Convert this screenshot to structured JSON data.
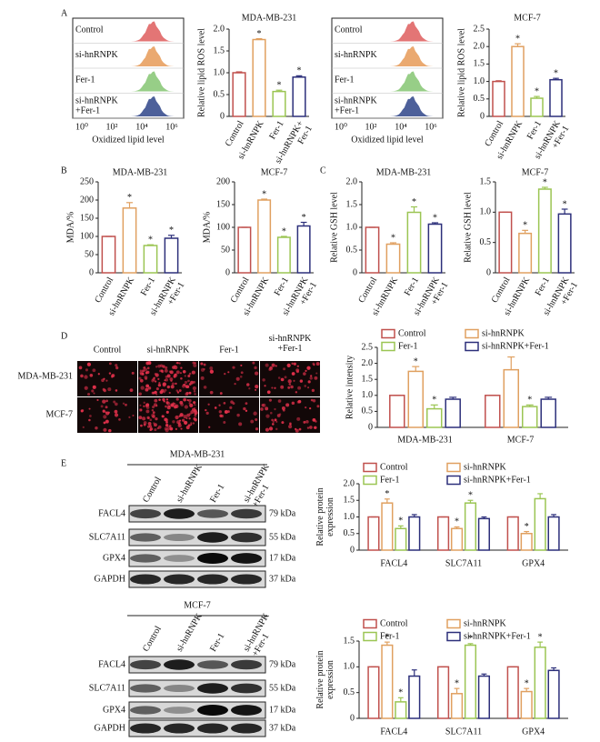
{
  "panel_labels": [
    "A",
    "B",
    "C",
    "D",
    "E"
  ],
  "flow_panels": [
    {
      "samples": [
        "Control",
        "si-hnRNPK",
        "Fer-1",
        "si-hnRNPK\n+Fer-1"
      ],
      "x_ticks": [
        "10⁰",
        "10²",
        "10⁴",
        "10⁶"
      ],
      "x_label": "Oxidized lipid level"
    },
    {
      "samples": [
        "Control",
        "si-hnRNPK",
        "Fer-1",
        "si-hnRNPK\n+Fer-1"
      ],
      "x_ticks": [
        "10⁰",
        "10²",
        "10⁴",
        "10⁶"
      ],
      "x_label": "Oxidized lipid level"
    }
  ],
  "imaging": {
    "columns": [
      "Control",
      "si-hnRNPK",
      "Fer-1",
      "si-hnRNPK\n+Fer-1"
    ],
    "rows": [
      "MDA-MB-231",
      "MCF-7"
    ]
  },
  "blots": [
    {
      "cell_line": "MDA-MB-231",
      "lanes": [
        "Control",
        "si-hnRNPK",
        "Fer-1",
        "si-hnRNPK\n+Fer-1"
      ],
      "proteins": [
        "FACL4",
        "SLC7A11",
        "GPX4",
        "GAPDH"
      ],
      "sizes": [
        "79 kDa",
        "55 kDa",
        "17 kDa",
        "37 kDa"
      ]
    },
    {
      "cell_line": "MCF-7",
      "lanes": [
        "Control",
        "si-hnRNPK",
        "Fer-1",
        "si-hnRNPK\n+Fer-1"
      ],
      "proteins": [
        "FACL4",
        "SLC7A11",
        "GPX4",
        "GAPDH"
      ],
      "sizes": [
        "79 kDa",
        "55 kDa",
        "17 kDa",
        "37 kDa"
      ]
    }
  ],
  "chart_data": [
    {
      "type": "bar",
      "title": "MDA-MB-231",
      "y_label": "Relative lipid ROS level",
      "categories": [
        "Control",
        "si-hnRNPK",
        "Fer-1",
        "si-hnRNPK+\nFer-1"
      ],
      "values": [
        1.0,
        1.76,
        0.57,
        0.9
      ],
      "errors": [
        0.02,
        0.02,
        0.03,
        0.03
      ],
      "significance": [
        null,
        "*",
        "*",
        "*"
      ],
      "colors": [
        "#c0504d",
        "#e0a060",
        "#9bc553",
        "#2c2f7a"
      ],
      "ylim": [
        0,
        2
      ],
      "yticks": [
        0,
        0.5,
        {
          "value": 1,
          "label": "1.0"
        },
        1.5,
        {
          "value": 2,
          "label": "2.0"
        }
      ]
    },
    {
      "type": "bar",
      "title": "MCF-7",
      "y_label": "Relative lipid ROS level",
      "categories": [
        "Control",
        "si-hnRNPK",
        "Fer-1",
        "si-hnRNPK\n+Fer-1"
      ],
      "values": [
        1.0,
        2.0,
        0.52,
        1.05
      ],
      "errors": [
        0.02,
        0.08,
        0.05,
        0.04
      ],
      "significance": [
        null,
        "*",
        "*",
        "*"
      ],
      "colors": [
        "#c0504d",
        "#e0a060",
        "#9bc553",
        "#2c2f7a"
      ],
      "ylim": [
        0,
        2.5
      ],
      "yticks": [
        0,
        0.5,
        {
          "value": 1,
          "label": "1.0"
        },
        1.5,
        {
          "value": 2,
          "label": "2.0"
        },
        2.5
      ]
    },
    {
      "type": "bar",
      "title": "MDA-MB-231",
      "y_label": "MDA/%",
      "categories": [
        "Control",
        "si-hnRNPK",
        "Fer-1",
        "si-hnRNPK\n+Fer-1"
      ],
      "values": [
        100,
        178,
        75,
        95
      ],
      "errors": [
        0,
        15,
        2,
        8
      ],
      "significance": [
        null,
        "*",
        "*",
        "*"
      ],
      "colors": [
        "#c0504d",
        "#e0a060",
        "#9bc553",
        "#2c2f7a"
      ],
      "ylim": [
        0,
        250
      ],
      "yticks": [
        0,
        50,
        100,
        150,
        200,
        250
      ]
    },
    {
      "type": "bar",
      "title": "MCF-7",
      "y_label": "MDA/%",
      "categories": [
        "Control",
        "si-hnRNPK",
        "Fer-1",
        "si-hnRNPK\n+Fer-1"
      ],
      "values": [
        100,
        160,
        78,
        103
      ],
      "errors": [
        0,
        2,
        2,
        8
      ],
      "significance": [
        null,
        "*",
        "*",
        "*"
      ],
      "colors": [
        "#c0504d",
        "#e0a060",
        "#9bc553",
        "#2c2f7a"
      ],
      "ylim": [
        0,
        200
      ],
      "yticks": [
        0,
        50,
        100,
        150,
        200
      ]
    },
    {
      "type": "bar",
      "title": "MDA-MB-231",
      "y_label": "Relative GSH level",
      "categories": [
        "Control",
        "si-hnRNPK",
        "Fer-1",
        "si-hnRNPK\n+Fer-1"
      ],
      "values": [
        1.0,
        0.63,
        1.33,
        1.07
      ],
      "errors": [
        0,
        0.03,
        0.12,
        0.03
      ],
      "significance": [
        null,
        "*",
        "*",
        "*"
      ],
      "colors": [
        "#c0504d",
        "#e0a060",
        "#9bc553",
        "#2c2f7a"
      ],
      "ylim": [
        0,
        2
      ],
      "yticks": [
        0,
        0.5,
        {
          "value": 1,
          "label": "1.0"
        },
        1.5,
        {
          "value": 2,
          "label": "2.0"
        }
      ]
    },
    {
      "type": "bar",
      "title": "MCF-7",
      "y_label": "Relative GSH level",
      "categories": [
        "Control",
        "si-hnRNPK",
        "Fer-1",
        "si-hnRNPK\n+Fer-1"
      ],
      "values": [
        1.0,
        0.65,
        1.38,
        0.97
      ],
      "errors": [
        0,
        0.05,
        0.03,
        0.08
      ],
      "significance": [
        null,
        "*",
        "*",
        "*"
      ],
      "colors": [
        "#c0504d",
        "#e0a060",
        "#9bc553",
        "#2c2f7a"
      ],
      "ylim": [
        0,
        1.5
      ],
      "yticks": [
        0,
        0.5,
        {
          "value": 1,
          "label": "1.0"
        },
        1.5
      ]
    },
    {
      "type": "grouped_bar",
      "y_label": "Relative intensity",
      "legend": "top",
      "categories": [
        "MDA-MB-231",
        "MCF-7"
      ],
      "series": [
        {
          "name": "Control",
          "color": "#c0504d",
          "values": [
            1.0,
            1.0
          ],
          "errors": [
            0,
            0
          ],
          "significance": [
            null,
            null
          ]
        },
        {
          "name": "si-hnRNPK",
          "color": "#e0a060",
          "values": [
            1.75,
            1.8
          ],
          "errors": [
            0.15,
            0.4
          ],
          "significance": [
            "*",
            null
          ]
        },
        {
          "name": "Fer-1",
          "color": "#9bc553",
          "values": [
            0.58,
            0.65
          ],
          "errors": [
            0.12,
            0.05
          ],
          "significance": [
            "*",
            "*"
          ]
        },
        {
          "name": "si-hnRNPK+Fer-1",
          "color": "#2c2f7a",
          "values": [
            0.88,
            0.88
          ],
          "errors": [
            0.06,
            0.06
          ],
          "significance": [
            null,
            null
          ]
        }
      ],
      "ylim": [
        0,
        2.5
      ],
      "yticks": [
        0,
        0.5,
        {
          "value": 1,
          "label": "1.0"
        },
        1.5,
        {
          "value": 2,
          "label": "2.0"
        },
        2.5
      ]
    },
    {
      "type": "grouped_bar",
      "y_label": "Relative protein\nexpression",
      "legend": "top",
      "categories": [
        "FACL4",
        "SLC7A11",
        "GPX4"
      ],
      "series": [
        {
          "name": "Control",
          "color": "#c0504d",
          "values": [
            1.0,
            1.0,
            1.0
          ],
          "errors": [
            0,
            0,
            0
          ],
          "significance": [
            null,
            null,
            null
          ]
        },
        {
          "name": "si-hnRNPK",
          "color": "#e0a060",
          "values": [
            1.42,
            0.65,
            0.5
          ],
          "errors": [
            0.12,
            0.05,
            0.06
          ],
          "significance": [
            "*",
            "*",
            "*"
          ]
        },
        {
          "name": "Fer-1",
          "color": "#9bc553",
          "values": [
            0.65,
            1.42,
            1.55
          ],
          "errors": [
            0.08,
            0.08,
            0.15
          ],
          "significance": [
            "*",
            "*",
            null
          ]
        },
        {
          "name": "si-hnRNPK+Fer-1",
          "color": "#2c2f7a",
          "values": [
            1.0,
            0.95,
            1.0
          ],
          "errors": [
            0.07,
            0.05,
            0.07
          ],
          "significance": [
            null,
            null,
            null
          ]
        }
      ],
      "ylim": [
        0,
        2
      ],
      "yticks": [
        0,
        0.5,
        {
          "value": 1,
          "label": "1.0"
        },
        1.5,
        {
          "value": 2,
          "label": "2.0"
        }
      ]
    },
    {
      "type": "grouped_bar",
      "y_label": "Relative protein\nexpression",
      "legend": "top",
      "categories": [
        "FACL4",
        "SLC7A11",
        "GPX4"
      ],
      "series": [
        {
          "name": "Control",
          "color": "#c0504d",
          "values": [
            1.0,
            1.0,
            1.0
          ],
          "errors": [
            0,
            0,
            0
          ],
          "significance": [
            null,
            null,
            null
          ]
        },
        {
          "name": "si-hnRNPK",
          "color": "#e0a060",
          "values": [
            1.42,
            0.48,
            0.52
          ],
          "errors": [
            0.06,
            0.1,
            0.06
          ],
          "significance": [
            "*",
            "*",
            "*"
          ]
        },
        {
          "name": "Fer-1",
          "color": "#9bc553",
          "values": [
            0.32,
            1.42,
            1.38
          ],
          "errors": [
            0.08,
            0.03,
            0.1
          ],
          "significance": [
            "*",
            "*",
            "*"
          ]
        },
        {
          "name": "si-hnRNPK+Fer-1",
          "color": "#2c2f7a",
          "values": [
            0.82,
            0.82,
            0.93
          ],
          "errors": [
            0.12,
            0.04,
            0.05
          ],
          "significance": [
            null,
            null,
            null
          ]
        }
      ],
      "ylim": [
        0,
        1.5
      ],
      "yticks": [
        0,
        0.5,
        {
          "value": 1,
          "label": "1.0"
        },
        1.5
      ]
    }
  ]
}
